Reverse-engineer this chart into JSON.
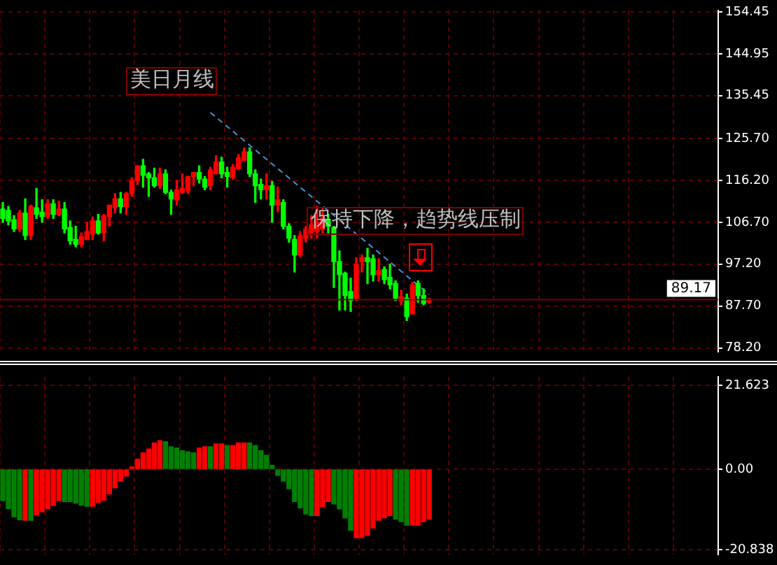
{
  "chart_data": [
    {
      "type": "candlestick",
      "categories": [
        null,
        null,
        null,
        null,
        null,
        null,
        null,
        null,
        null,
        null,
        null,
        null,
        null,
        null,
        null,
        null,
        null,
        null,
        null,
        null,
        null,
        null,
        null,
        null,
        null,
        null,
        null,
        null,
        null,
        null,
        null,
        null,
        null,
        null,
        null,
        null,
        null,
        null,
        null,
        null,
        null,
        null,
        null,
        null,
        null,
        null,
        null,
        null,
        null,
        null,
        null,
        null,
        null,
        null,
        null,
        null,
        null,
        null,
        null,
        null,
        null,
        null,
        null,
        null,
        null,
        null,
        null,
        null,
        null,
        null,
        null,
        null,
        null,
        null,
        null,
        null,
        null,
        null,
        null,
        null,
        null,
        null,
        null,
        null,
        null,
        null,
        null,
        null,
        null,
        null,
        null,
        null,
        null,
        null,
        null,
        null,
        null,
        null,
        null,
        null,
        null,
        null,
        null,
        null,
        null,
        null,
        null,
        null,
        null,
        null,
        null,
        null,
        null,
        null,
        null,
        null,
        null,
        null,
        null,
        null,
        null,
        null,
        null,
        null,
        null,
        null,
        null,
        null
      ],
      "ohlc": [
        [
          109.7,
          111.2,
          106.7,
          107.6
        ],
        [
          109.4,
          110.3,
          106.1,
          107.0
        ],
        [
          107.3,
          108.2,
          104.6,
          105.2
        ],
        [
          105.2,
          109.4,
          104.6,
          108.8
        ],
        [
          108.8,
          112.0,
          102.8,
          103.7
        ],
        [
          103.7,
          110.6,
          102.8,
          110.3
        ],
        [
          110.0,
          114.4,
          107.6,
          108.5
        ],
        [
          109.0,
          111.8,
          106.7,
          108.0
        ],
        [
          108.0,
          111.8,
          107.6,
          110.9
        ],
        [
          110.9,
          111.8,
          107.6,
          108.5
        ],
        [
          108.5,
          111.5,
          108.2,
          109.7
        ],
        [
          109.7,
          111.2,
          104.3,
          105.2
        ],
        [
          105.5,
          107.0,
          101.7,
          102.5
        ],
        [
          102.8,
          105.8,
          101.1,
          101.7
        ],
        [
          101.7,
          104.3,
          101.1,
          103.4
        ],
        [
          102.8,
          106.7,
          102.8,
          104.6
        ],
        [
          104.0,
          107.9,
          102.8,
          107.0
        ],
        [
          107.0,
          108.5,
          104.0,
          104.3
        ],
        [
          104.3,
          108.5,
          102.5,
          108.2
        ],
        [
          107.9,
          110.6,
          105.8,
          110.6
        ],
        [
          110.0,
          113.2,
          108.8,
          112.0
        ],
        [
          112.0,
          113.5,
          108.8,
          110.3
        ],
        [
          110.3,
          113.5,
          108.5,
          113.2
        ],
        [
          113.2,
          116.8,
          112.6,
          116.2
        ],
        [
          116.2,
          119.5,
          115.3,
          119.5
        ],
        [
          119.5,
          121.0,
          114.7,
          117.4
        ],
        [
          117.7,
          118.0,
          112.6,
          116.8
        ],
        [
          116.8,
          119.0,
          114.7,
          115.0
        ],
        [
          115.0,
          119.0,
          114.4,
          117.7
        ],
        [
          117.7,
          118.6,
          113.2,
          113.5
        ],
        [
          113.5,
          114.0,
          108.5,
          112.0
        ],
        [
          111.8,
          116.2,
          110.6,
          114.1
        ],
        [
          113.5,
          117.7,
          113.2,
          114.4
        ],
        [
          113.8,
          117.1,
          113.2,
          117.1
        ],
        [
          117.1,
          118.0,
          115.0,
          118.0
        ],
        [
          118.0,
          119.5,
          115.6,
          116.5
        ],
        [
          116.5,
          117.1,
          114.1,
          114.7
        ],
        [
          115.0,
          119.2,
          114.1,
          118.6
        ],
        [
          117.7,
          121.8,
          117.7,
          120.4
        ],
        [
          120.4,
          121.5,
          116.8,
          117.7
        ],
        [
          118.0,
          119.2,
          114.7,
          117.1
        ],
        [
          116.8,
          119.8,
          116.5,
          119.2
        ],
        [
          118.9,
          122.1,
          118.6,
          121.3
        ],
        [
          120.7,
          123.6,
          120.7,
          122.7
        ],
        [
          122.7,
          123.6,
          117.1,
          117.7
        ],
        [
          117.7,
          118.6,
          111.2,
          115.0
        ],
        [
          115.3,
          116.5,
          112.0,
          114.1
        ],
        [
          114.1,
          117.7,
          112.0,
          115.0
        ],
        [
          115.0,
          116.0,
          106.7,
          110.6
        ],
        [
          110.6,
          114.7,
          109.1,
          111.8
        ],
        [
          111.2,
          111.8,
          105.2,
          105.8
        ],
        [
          105.8,
          106.4,
          102.2,
          103.1
        ],
        [
          102.8,
          103.7,
          95.4,
          99.3
        ],
        [
          99.3,
          104.6,
          98.9,
          103.7
        ],
        [
          103.1,
          105.8,
          102.2,
          105.2
        ],
        [
          104.3,
          108.2,
          103.1,
          106.1
        ],
        [
          104.6,
          110.3,
          103.1,
          106.7
        ],
        [
          105.2,
          110.0,
          104.3,
          107.6
        ],
        [
          107.3,
          108.5,
          104.3,
          105.8
        ],
        [
          105.5,
          105.8,
          91.9,
          97.8
        ],
        [
          97.8,
          100.2,
          86.8,
          94.8
        ],
        [
          95.1,
          95.4,
          86.8,
          90.1
        ],
        [
          91.0,
          94.0,
          86.5,
          88.9
        ],
        [
          89.5,
          98.7,
          88.9,
          97.2
        ],
        [
          97.8,
          99.3,
          95.4,
          98.7
        ],
        [
          98.7,
          100.8,
          92.8,
          97.8
        ],
        [
          98.4,
          99.3,
          93.4,
          94.8
        ],
        [
          94.8,
          98.4,
          93.4,
          95.7
        ],
        [
          96.0,
          96.6,
          92.8,
          93.7
        ],
        [
          94.2,
          97.2,
          91.6,
          92.5
        ],
        [
          92.8,
          93.4,
          88.9,
          89.5
        ],
        [
          88.9,
          91.3,
          88.0,
          89.8
        ],
        [
          89.5,
          90.4,
          84.4,
          85.3
        ],
        [
          85.9,
          93.1,
          85.9,
          92.5
        ],
        [
          92.8,
          93.4,
          88.6,
          90.1
        ],
        [
          90.1,
          91.6,
          88.0,
          88.3
        ],
        [
          88.6,
          89.5,
          88.3,
          89.17
        ],
        null,
        null,
        null,
        null,
        null,
        null,
        null,
        null,
        null,
        null,
        null,
        null,
        null,
        null,
        null,
        null,
        null,
        null,
        null,
        null,
        null,
        null,
        null,
        null,
        null,
        null,
        null,
        null,
        null,
        null,
        null,
        null,
        null,
        null,
        null,
        null,
        null,
        null,
        null,
        null,
        null,
        null,
        null,
        null,
        null,
        null,
        null,
        null,
        null,
        null,
        null
      ],
      "colors": [
        "#00ff00",
        "#00ff00",
        "#00ff00",
        "#ff0000",
        "#00ff00",
        "#ff0000",
        "#00ff00",
        "#00ff00",
        "#ff0000",
        "#00ff00",
        "#ff0000",
        "#00ff00",
        "#00ff00",
        "#00ff00",
        "#ff0000",
        "#ff0000",
        "#ff0000",
        "#00ff00",
        "#ff0000",
        "#ff0000",
        "#ff0000",
        "#00ff00",
        "#ff0000",
        "#ff0000",
        "#ff0000",
        "#00ff00",
        "#00ff00",
        "#00ff00",
        "#ff0000",
        "#00ff00",
        "#00ff00",
        "#ff0000",
        "#ff0000",
        "#ff0000",
        "#ff0000",
        "#00ff00",
        "#00ff00",
        "#ff0000",
        "#ff0000",
        "#00ff00",
        "#00ff00",
        "#ff0000",
        "#ff0000",
        "#ff0000",
        "#00ff00",
        "#00ff00",
        "#00ff00",
        "#ff0000",
        "#00ff00",
        "#ff0000",
        "#00ff00",
        "#00ff00",
        "#00ff00",
        "#ff0000",
        "#ff0000",
        "#ff0000",
        "#ff0000",
        "#ff0000",
        "#00ff00",
        "#00ff00",
        "#00ff00",
        "#00ff00",
        "#00ff00",
        "#ff0000",
        "#ff0000",
        "#00ff00",
        "#00ff00",
        "#ff0000",
        "#00ff00",
        "#00ff00",
        "#00ff00",
        "#ff0000",
        "#00ff00",
        "#ff0000",
        "#00ff00",
        "#00ff00",
        "#ff0000",
        null,
        null,
        null,
        null,
        null,
        null,
        null,
        null,
        null,
        null,
        null,
        null,
        null,
        null,
        null,
        null,
        null,
        null,
        null,
        null,
        null,
        null,
        null,
        null,
        null,
        null,
        null,
        null,
        null,
        null,
        null,
        null,
        null,
        null,
        null,
        null,
        null,
        null,
        null,
        null,
        null,
        null,
        null,
        null,
        null,
        null,
        null,
        null,
        null,
        null,
        null
      ],
      "series": [
        {
          "type": "line",
          "color": "#4a8fd0",
          "line_style": "dashed",
          "values": [
            null,
            null,
            null,
            null,
            null,
            null,
            null,
            null,
            null,
            null,
            null,
            null,
            null,
            null,
            null,
            null,
            null,
            null,
            null,
            null,
            null,
            null,
            null,
            null,
            null,
            null,
            null,
            null,
            null,
            null,
            null,
            null,
            null,
            null,
            null,
            null,
            null,
            131.6,
            null,
            null,
            null,
            null,
            null,
            null,
            null,
            null,
            null,
            null,
            null,
            null,
            null,
            null,
            null,
            null,
            null,
            null,
            null,
            null,
            null,
            null,
            null,
            null,
            null,
            null,
            null,
            null,
            null,
            null,
            null,
            null,
            null,
            null,
            null,
            null,
            null,
            null,
            90.3,
            null,
            null,
            null,
            null,
            null,
            null,
            null,
            null,
            null,
            null,
            null,
            null,
            null,
            null,
            null,
            null,
            null,
            null,
            null,
            null,
            null,
            null,
            null,
            null,
            null,
            null,
            null,
            null,
            null,
            null,
            null,
            null,
            null,
            null,
            null,
            null,
            null,
            null,
            null,
            null,
            null,
            null,
            null,
            null,
            null,
            null,
            null,
            null,
            null,
            null,
            null
          ]
        }
      ],
      "ylim": [
        77.3,
        154.8
      ],
      "yticks": [
        {
          "value": 154.45,
          "label": "154.45"
        },
        {
          "value": 144.95,
          "label": "144.95"
        },
        {
          "value": 135.45,
          "label": "135.45"
        },
        {
          "value": 125.7,
          "label": "125.70"
        },
        {
          "value": 116.2,
          "label": "116.20"
        },
        {
          "value": 106.7,
          "label": "106.70"
        },
        {
          "value": 97.2,
          "label": "97.20"
        },
        {
          "value": 87.7,
          "label": "87.70"
        },
        {
          "value": 78.2,
          "label": "78.20"
        }
      ],
      "grid": true,
      "ref_lines": [
        {
          "axis": "y",
          "value": 89.17,
          "label": "89.17",
          "color": "#800000"
        }
      ],
      "annotations": [
        "美日月线",
        "保持下降，趋势线压制"
      ]
    },
    {
      "type": "bar",
      "categories": [
        null,
        null,
        null,
        null,
        null,
        null,
        null,
        null,
        null,
        null,
        null,
        null,
        null,
        null,
        null,
        null,
        null,
        null,
        null,
        null,
        null,
        null,
        null,
        null,
        null,
        null,
        null,
        null,
        null,
        null,
        null,
        null,
        null,
        null,
        null,
        null,
        null,
        null,
        null,
        null,
        null,
        null,
        null,
        null,
        null,
        null,
        null,
        null,
        null,
        null,
        null,
        null,
        null,
        null,
        null,
        null,
        null,
        null,
        null,
        null,
        null,
        null,
        null,
        null,
        null,
        null,
        null,
        null,
        null,
        null,
        null,
        null,
        null,
        null,
        null,
        null,
        null,
        null,
        null,
        null,
        null,
        null,
        null,
        null,
        null,
        null,
        null,
        null,
        null,
        null,
        null,
        null,
        null,
        null,
        null,
        null,
        null,
        null,
        null,
        null,
        null,
        null,
        null,
        null,
        null,
        null,
        null,
        null,
        null,
        null,
        null,
        null,
        null,
        null,
        null,
        null,
        null,
        null,
        null,
        null,
        null,
        null,
        null,
        null,
        null,
        null,
        null,
        null
      ],
      "values": [
        -8.1,
        -10.2,
        -12.3,
        -13.1,
        -13.2,
        -13.2,
        -11.8,
        -11.0,
        -10.2,
        -9.4,
        -8.1,
        -8.4,
        -8.4,
        -8.8,
        -9.3,
        -9.6,
        -9.6,
        -8.6,
        -8.0,
        -6.4,
        -4.8,
        -3.1,
        -1.8,
        0.6,
        2.6,
        4.2,
        5.2,
        6.8,
        7.4,
        7.1,
        5.8,
        5.5,
        4.8,
        4.5,
        4.2,
        5.5,
        5.8,
        5.8,
        6.5,
        6.5,
        6.1,
        6.1,
        6.8,
        6.8,
        6.8,
        6.1,
        4.8,
        3.6,
        1.0,
        -1.6,
        -3.1,
        -5.1,
        -8.4,
        -10.0,
        -11.6,
        -12.0,
        -12.0,
        -9.7,
        -8.4,
        -9.0,
        -10.3,
        -12.6,
        -15.8,
        -17.7,
        -17.7,
        -17.1,
        -15.2,
        -13.2,
        -12.6,
        -12.0,
        -12.9,
        -13.6,
        -14.5,
        -14.5,
        -14.5,
        -13.6,
        -12.9,
        null,
        null,
        null,
        null,
        null,
        null,
        null,
        null,
        null,
        null,
        null,
        null,
        null,
        null,
        null,
        null,
        null,
        null,
        null,
        null,
        null,
        null,
        null,
        null,
        null,
        null,
        null,
        null,
        null,
        null,
        null,
        null,
        null,
        null,
        null,
        null,
        null,
        null,
        null,
        null,
        null,
        null,
        null,
        null,
        null,
        null,
        null,
        null,
        null,
        null,
        null
      ],
      "colors": [
        "#008000",
        "#008000",
        "#008000",
        "#008000",
        "#ff0000",
        "#008000",
        "#ff0000",
        "#ff0000",
        "#ff0000",
        "#ff0000",
        "#ff0000",
        "#008000",
        "#008000",
        "#008000",
        "#008000",
        "#008000",
        "#ff0000",
        "#ff0000",
        "#ff0000",
        "#ff0000",
        "#ff0000",
        "#ff0000",
        "#ff0000",
        "#ff0000",
        "#ff0000",
        "#ff0000",
        "#ff0000",
        "#ff0000",
        "#ff0000",
        "#008000",
        "#008000",
        "#008000",
        "#008000",
        "#008000",
        "#008000",
        "#ff0000",
        "#ff0000",
        "#008000",
        "#ff0000",
        "#ff0000",
        "#008000",
        "#ff0000",
        "#ff0000",
        "#ff0000",
        "#008000",
        "#008000",
        "#008000",
        "#008000",
        "#008000",
        "#008000",
        "#008000",
        "#008000",
        "#008000",
        "#008000",
        "#008000",
        "#008000",
        "#ff0000",
        "#ff0000",
        "#ff0000",
        "#008000",
        "#008000",
        "#008000",
        "#008000",
        "#ff0000",
        "#ff0000",
        "#ff0000",
        "#ff0000",
        "#ff0000",
        "#ff0000",
        "#ff0000",
        "#008000",
        "#008000",
        "#008000",
        "#ff0000",
        "#ff0000",
        "#ff0000",
        "#ff0000",
        null,
        null,
        null,
        null,
        null,
        null,
        null,
        null,
        null,
        null,
        null,
        null,
        null,
        null,
        null,
        null,
        null,
        null,
        null,
        null,
        null,
        null,
        null,
        null,
        null,
        null,
        null,
        null,
        null,
        null,
        null,
        null,
        null,
        null,
        null,
        null,
        null,
        null,
        null,
        null,
        null,
        null,
        null,
        null,
        null,
        null,
        null,
        null,
        null,
        null,
        null
      ],
      "ylim": [
        -22.1,
        23.9
      ],
      "yticks": [
        {
          "value": 21.623,
          "label": "21.623"
        },
        {
          "value": 0,
          "label": "0.00"
        },
        {
          "value": -20.838,
          "label": "-20.838"
        }
      ],
      "grid": true
    }
  ]
}
